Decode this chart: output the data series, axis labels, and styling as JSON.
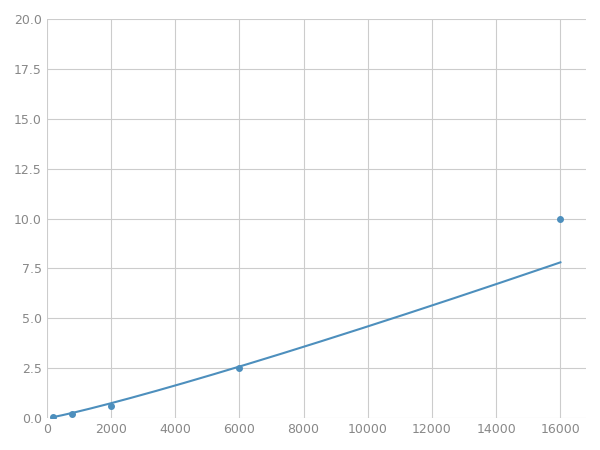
{
  "x_data": [
    200,
    500,
    800,
    2000,
    6000,
    16000
  ],
  "y_data": [
    0.08,
    0.15,
    0.2,
    0.6,
    2.5,
    10.0
  ],
  "line_color": "#4d8fbd",
  "marker_color": "#4d8fbd",
  "marker_indices": [
    0,
    2,
    3,
    4,
    5
  ],
  "marker_size": 4,
  "line_width": 1.5,
  "xlim": [
    0,
    16800
  ],
  "ylim": [
    0,
    20.0
  ],
  "xticks": [
    0,
    2000,
    4000,
    6000,
    8000,
    10000,
    12000,
    14000,
    16000
  ],
  "yticks": [
    0.0,
    2.5,
    5.0,
    7.5,
    10.0,
    12.5,
    15.0,
    17.5,
    20.0
  ],
  "grid_color": "#cccccc",
  "background_color": "#ffffff",
  "figsize": [
    6.0,
    4.5
  ],
  "dpi": 100
}
